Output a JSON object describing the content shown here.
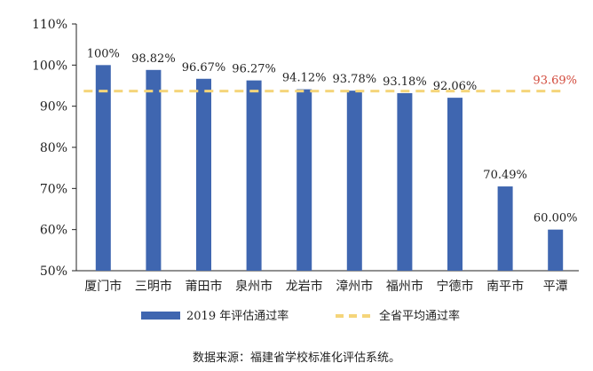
{
  "chart_data": {
    "type": "bar",
    "categories": [
      "厦门市",
      "三明市",
      "莆田市",
      "泉州市",
      "龙岩市",
      "漳州市",
      "福州市",
      "宁德市",
      "南平市",
      "平潭"
    ],
    "series": [
      {
        "name": "2019 年评估通过率",
        "values": [
          100,
          98.82,
          96.67,
          96.27,
          94.12,
          93.78,
          93.18,
          92.06,
          70.49,
          60.0
        ],
        "labels": [
          "100%",
          "98.82%",
          "96.67%",
          "96.27%",
          "94.12%",
          "93.78%",
          "93.18%",
          "92.06%",
          "70.49%",
          "60.00%"
        ],
        "color": "#3f66b0"
      }
    ],
    "reference_line": {
      "name": "全省平均通过率",
      "value": 93.69,
      "label": "93.69%",
      "color": "#f5d57a",
      "label_color": "#d24a3c",
      "style": "dashed"
    },
    "yticks": [
      "50%",
      "60%",
      "70%",
      "80%",
      "90%",
      "100%",
      "110%"
    ],
    "ytick_values": [
      50,
      60,
      70,
      80,
      90,
      100,
      110
    ],
    "ylim": [
      50,
      110
    ],
    "legend_position": "bottom",
    "grid": false
  },
  "source_note": "数据来源：福建省学校标准化评估系统。"
}
